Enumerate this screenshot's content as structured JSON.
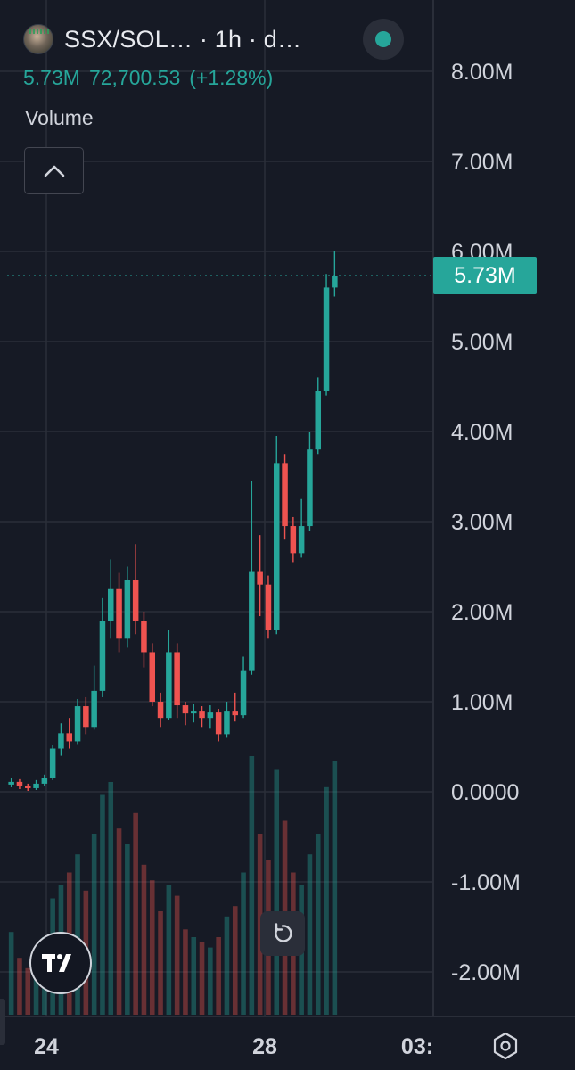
{
  "header": {
    "symbol_title": "SSX/SOL… · 1h · d…",
    "logo_icon": "token-avatar-icon",
    "status_color": "#26a69a"
  },
  "legend": {
    "volume_value": "5.73M",
    "price_value": "72,700.53",
    "change": "(+1.28%)"
  },
  "indicator": {
    "name": "Volume",
    "collapse_icon": "chevron-up-icon"
  },
  "last_price_label": "5.73M",
  "controls": {
    "reset_icon": "reset-rotate-icon",
    "settings_icon": "hexagon-settings-icon",
    "brand_icon": "tradingview-logo-icon"
  },
  "colors": {
    "background": "#161a25",
    "up": "#26a69a",
    "down": "#ef5350",
    "grid": "#2a2e39",
    "axis_text": "#d1d4dc"
  },
  "chart_data": {
    "type": "candlestick",
    "interval": "1h",
    "y_axis": {
      "ticks": [
        "8.00M",
        "7.00M",
        "6.00M",
        "5.00M",
        "4.00M",
        "3.00M",
        "2.00M",
        "1.00M",
        "0.0000",
        "-1.00M",
        "-2.00M"
      ],
      "tick_values": [
        8000000,
        7000000,
        6000000,
        5000000,
        4000000,
        3000000,
        2000000,
        1000000,
        0,
        -1000000,
        -2000000
      ],
      "range": [
        -2450000,
        8600000
      ]
    },
    "x_axis": {
      "ticks": [
        "24",
        "28",
        "03:"
      ],
      "tick_index": [
        4,
        29,
        46
      ]
    },
    "last_value": 5730000,
    "candles": [
      {
        "o": 80000,
        "c": 110000,
        "h": 150000,
        "l": 50000,
        "v": 0.32
      },
      {
        "o": 110000,
        "c": 60000,
        "h": 140000,
        "l": 30000,
        "v": 0.22
      },
      {
        "o": 60000,
        "c": 40000,
        "h": 90000,
        "l": 10000,
        "v": 0.18
      },
      {
        "o": 40000,
        "c": 90000,
        "h": 130000,
        "l": 20000,
        "v": 0.25
      },
      {
        "o": 90000,
        "c": 150000,
        "h": 190000,
        "l": 60000,
        "v": 0.3
      },
      {
        "o": 150000,
        "c": 480000,
        "h": 520000,
        "l": 130000,
        "v": 0.45
      },
      {
        "o": 480000,
        "c": 650000,
        "h": 760000,
        "l": 400000,
        "v": 0.5
      },
      {
        "o": 650000,
        "c": 560000,
        "h": 820000,
        "l": 480000,
        "v": 0.55
      },
      {
        "o": 560000,
        "c": 950000,
        "h": 1030000,
        "l": 530000,
        "v": 0.62
      },
      {
        "o": 950000,
        "c": 720000,
        "h": 1050000,
        "l": 640000,
        "v": 0.48
      },
      {
        "o": 720000,
        "c": 1120000,
        "h": 1400000,
        "l": 690000,
        "v": 0.7
      },
      {
        "o": 1120000,
        "c": 1900000,
        "h": 2150000,
        "l": 1050000,
        "v": 0.85
      },
      {
        "o": 1900000,
        "c": 2250000,
        "h": 2580000,
        "l": 1700000,
        "v": 0.9
      },
      {
        "o": 2250000,
        "c": 1700000,
        "h": 2430000,
        "l": 1550000,
        "v": 0.72
      },
      {
        "o": 1700000,
        "c": 2350000,
        "h": 2500000,
        "l": 1600000,
        "v": 0.66
      },
      {
        "o": 2350000,
        "c": 1900000,
        "h": 2750000,
        "l": 1750000,
        "v": 0.78
      },
      {
        "o": 1900000,
        "c": 1550000,
        "h": 2000000,
        "l": 1380000,
        "v": 0.58
      },
      {
        "o": 1550000,
        "c": 1000000,
        "h": 1650000,
        "l": 950000,
        "v": 0.52
      },
      {
        "o": 1000000,
        "c": 820000,
        "h": 1100000,
        "l": 720000,
        "v": 0.4
      },
      {
        "o": 820000,
        "c": 1550000,
        "h": 1800000,
        "l": 800000,
        "v": 0.5
      },
      {
        "o": 1550000,
        "c": 960000,
        "h": 1650000,
        "l": 820000,
        "v": 0.46
      },
      {
        "o": 960000,
        "c": 870000,
        "h": 1000000,
        "l": 740000,
        "v": 0.33
      },
      {
        "o": 870000,
        "c": 900000,
        "h": 980000,
        "l": 770000,
        "v": 0.3
      },
      {
        "o": 900000,
        "c": 820000,
        "h": 950000,
        "l": 720000,
        "v": 0.28
      },
      {
        "o": 820000,
        "c": 880000,
        "h": 960000,
        "l": 700000,
        "v": 0.26
      },
      {
        "o": 880000,
        "c": 640000,
        "h": 920000,
        "l": 560000,
        "v": 0.3
      },
      {
        "o": 640000,
        "c": 900000,
        "h": 1000000,
        "l": 600000,
        "v": 0.38
      },
      {
        "o": 900000,
        "c": 850000,
        "h": 1100000,
        "l": 780000,
        "v": 0.42
      },
      {
        "o": 850000,
        "c": 1350000,
        "h": 1500000,
        "l": 820000,
        "v": 0.55
      },
      {
        "o": 1350000,
        "c": 2450000,
        "h": 3450000,
        "l": 1300000,
        "v": 1.0
      },
      {
        "o": 2450000,
        "c": 2300000,
        "h": 2850000,
        "l": 1950000,
        "v": 0.7
      },
      {
        "o": 2300000,
        "c": 1800000,
        "h": 2400000,
        "l": 1700000,
        "v": 0.6
      },
      {
        "o": 1800000,
        "c": 3650000,
        "h": 3950000,
        "l": 1750000,
        "v": 0.95
      },
      {
        "o": 3650000,
        "c": 2950000,
        "h": 3750000,
        "l": 2800000,
        "v": 0.75
      },
      {
        "o": 2950000,
        "c": 2650000,
        "h": 3050000,
        "l": 2550000,
        "v": 0.55
      },
      {
        "o": 2650000,
        "c": 2950000,
        "h": 3250000,
        "l": 2600000,
        "v": 0.5
      },
      {
        "o": 2950000,
        "c": 3800000,
        "h": 4000000,
        "l": 2900000,
        "v": 0.62
      },
      {
        "o": 3800000,
        "c": 4450000,
        "h": 4600000,
        "l": 3750000,
        "v": 0.7
      },
      {
        "o": 4450000,
        "c": 5600000,
        "h": 5750000,
        "l": 4400000,
        "v": 0.88
      },
      {
        "o": 5600000,
        "c": 5730000,
        "h": 6000000,
        "l": 5500000,
        "v": 0.98
      }
    ]
  }
}
